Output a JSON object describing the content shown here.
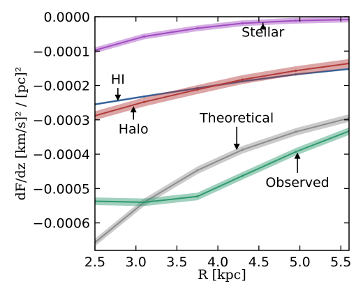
{
  "chart_data": {
    "type": "line",
    "xlabel": "R [kpc]",
    "ylabel": "dF/dz [km/s]² / [pc]²",
    "xlim": [
      2.5,
      5.6
    ],
    "ylim": [
      -0.00068,
      0.0
    ],
    "xticks": [
      2.5,
      3.0,
      3.5,
      4.0,
      4.5,
      5.0,
      5.5
    ],
    "xtick_labels": [
      "2.5",
      "3.0",
      "3.5",
      "4.0",
      "4.5",
      "5.0",
      "5.5"
    ],
    "yticks": [
      0.0,
      -0.0001,
      -0.0002,
      -0.0003,
      -0.0004,
      -0.0005,
      -0.0006
    ],
    "ytick_labels": [
      "0.0000",
      "−0.0001",
      "−0.0002",
      "−0.0003",
      "−0.0004",
      "−0.0005",
      "−0.0006"
    ],
    "grid": false,
    "series": [
      {
        "name": "Stellar",
        "color": "#a24cc2",
        "band": 8.5e-06,
        "x": [
          2.5,
          3.1,
          3.75,
          4.3,
          4.95,
          5.6
        ],
        "y": [
          -9.75e-05,
          -5.75e-05,
          -3.35e-05,
          -1.9e-05,
          -1.15e-05,
          -8e-06
        ]
      },
      {
        "name": "HI",
        "color": "#2e5d94",
        "band": 3e-06,
        "x": [
          2.5,
          3.1,
          3.75,
          4.3,
          4.95,
          5.6
        ],
        "y": [
          -0.000255,
          -0.000232,
          -0.000208,
          -0.000188,
          -0.000168,
          -0.000152
        ]
      },
      {
        "name": "Halo",
        "color": "#b23a3a",
        "band": 1.3e-05,
        "x": [
          2.5,
          3.1,
          3.75,
          4.3,
          4.95,
          5.6
        ],
        "y": [
          -0.000288,
          -0.000248,
          -0.000212,
          -0.000183,
          -0.000157,
          -0.000136
        ]
      },
      {
        "name": "Theoretical",
        "color": "#8c8c8c",
        "band": 1.1e-05,
        "x": [
          2.5,
          3.1,
          3.75,
          4.3,
          4.95,
          5.6
        ],
        "y": [
          -0.000657,
          -0.00054,
          -0.000447,
          -0.000387,
          -0.000335,
          -0.000295
        ]
      },
      {
        "name": "Observed",
        "color": "#2f9a6e",
        "band": 1.1e-05,
        "x": [
          2.5,
          3.1,
          3.75,
          4.3,
          4.95,
          5.6
        ],
        "y": [
          -0.000537,
          -0.00054,
          -0.000523,
          -0.000463,
          -0.000393,
          -0.000333
        ]
      }
    ],
    "annotations": [
      {
        "text": "Stellar",
        "text_x": 4.55,
        "text_y": -5.8e-05,
        "arrow_x": 4.55,
        "arrow_y": -1.9e-05
      },
      {
        "text": "HI",
        "text_x": 2.78,
        "text_y": -0.000195,
        "arrow_x": 2.78,
        "arrow_y": -0.000245
      },
      {
        "text": "Halo",
        "text_x": 2.97,
        "text_y": -0.00034,
        "arrow_x": 2.97,
        "arrow_y": -0.00026
      },
      {
        "text": "Theoretical",
        "text_x": 4.23,
        "text_y": -0.000308,
        "arrow_x": 4.23,
        "arrow_y": -0.000388
      },
      {
        "text": "Observed",
        "text_x": 4.97,
        "text_y": -0.000495,
        "arrow_x": 4.97,
        "arrow_y": -0.000395
      }
    ]
  }
}
